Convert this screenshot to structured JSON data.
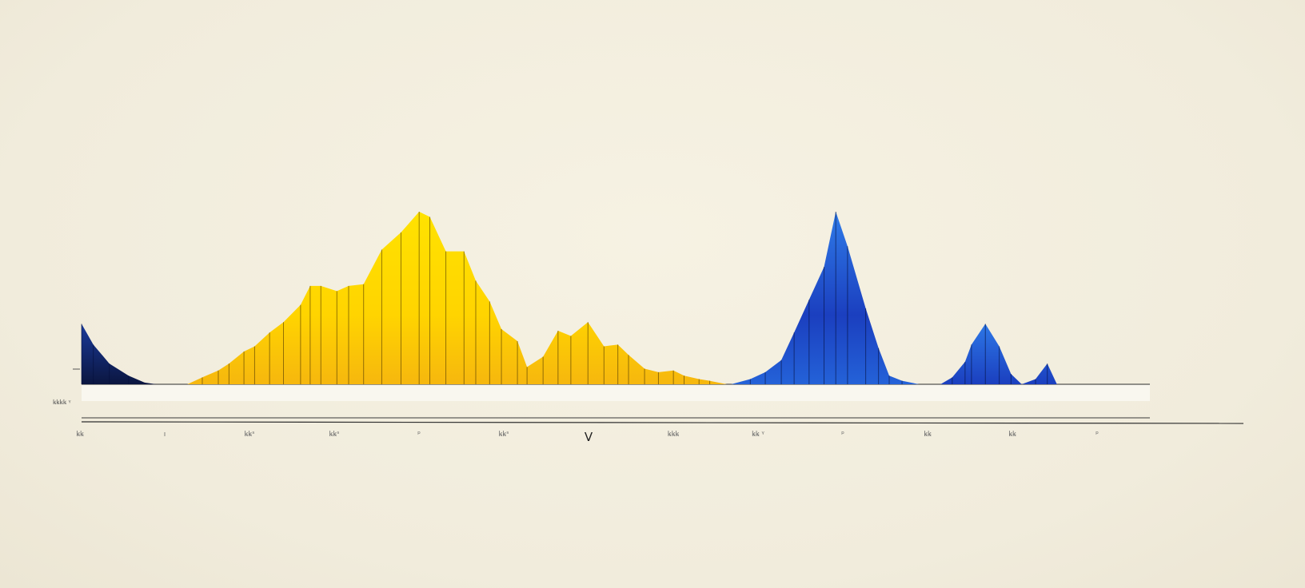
{
  "chart_data": {
    "type": "area",
    "title": "",
    "xlabel": "",
    "ylabel": "",
    "y_tick_label": "ꝃꝃꝃꝃ ᵞ",
    "x_tick_labels": [
      "ꝃꝃ",
      "ı",
      "ꝃꝃˢ",
      "ꝃꝃˢ",
      "ᵖ",
      "ꝃꝃˢ",
      "V",
      "ꝃꝃꝃ",
      "ꝃꝃ ᵞ",
      "ᵖ",
      "ꝃꝃ",
      "ꝃꝃ",
      "ᵖ"
    ],
    "major_x_tick_index": 6,
    "grid": false,
    "legend": "none",
    "xlim": [
      0,
      100
    ],
    "ylim": [
      0,
      100
    ],
    "series": [
      {
        "color": "#1a2f7a",
        "x": [
          0,
          1.1,
          2.6,
          4.4,
          5.9,
          7.0
        ],
        "values": [
          35,
          23,
          12,
          5,
          1,
          0
        ]
      },
      {
        "color": "#f5c400",
        "x": [
          9.9,
          11.3,
          12.8,
          13.8,
          15.2,
          16.2,
          17.6,
          18.9,
          20.5,
          21.4,
          22.4,
          23.9,
          25.0,
          26.4,
          28.1,
          29.9,
          31.6,
          32.6,
          34.1,
          35.8,
          36.9,
          38.2,
          39.3,
          40.8,
          41.7,
          43.2,
          44.6,
          45.8,
          47.4,
          48.9,
          50.2,
          51.2,
          52.7,
          54.0,
          55.4,
          56.4,
          57.8,
          58.8,
          60.4
        ],
        "values": [
          0,
          4,
          8,
          12,
          19,
          22,
          30,
          36,
          46,
          57,
          57,
          54,
          57,
          58,
          78,
          88,
          100,
          97,
          77,
          77,
          60,
          48,
          32,
          25,
          10,
          16,
          31,
          28,
          36,
          22,
          23,
          17,
          9,
          7,
          8,
          5,
          3,
          2,
          0
        ]
      },
      {
        "color": "#1f4fd1",
        "x": [
          60.8,
          62.6,
          64.0,
          65.5,
          66.7,
          68.1,
          69.5,
          70.6,
          71.7,
          73.4,
          74.6,
          75.6,
          76.8,
          78.4
        ],
        "values": [
          0,
          3,
          7,
          14,
          30,
          49,
          68,
          100,
          80,
          44,
          21,
          5,
          2,
          0
        ]
      },
      {
        "color": "#2a5ad6",
        "x": [
          80.4,
          81.5,
          82.7,
          83.3,
          84.6,
          85.9,
          87.0,
          88.0,
          89.3,
          90.4,
          91.3
        ],
        "values": [
          0,
          4,
          13,
          23,
          35,
          22,
          6,
          0,
          3,
          12,
          0
        ]
      }
    ]
  }
}
